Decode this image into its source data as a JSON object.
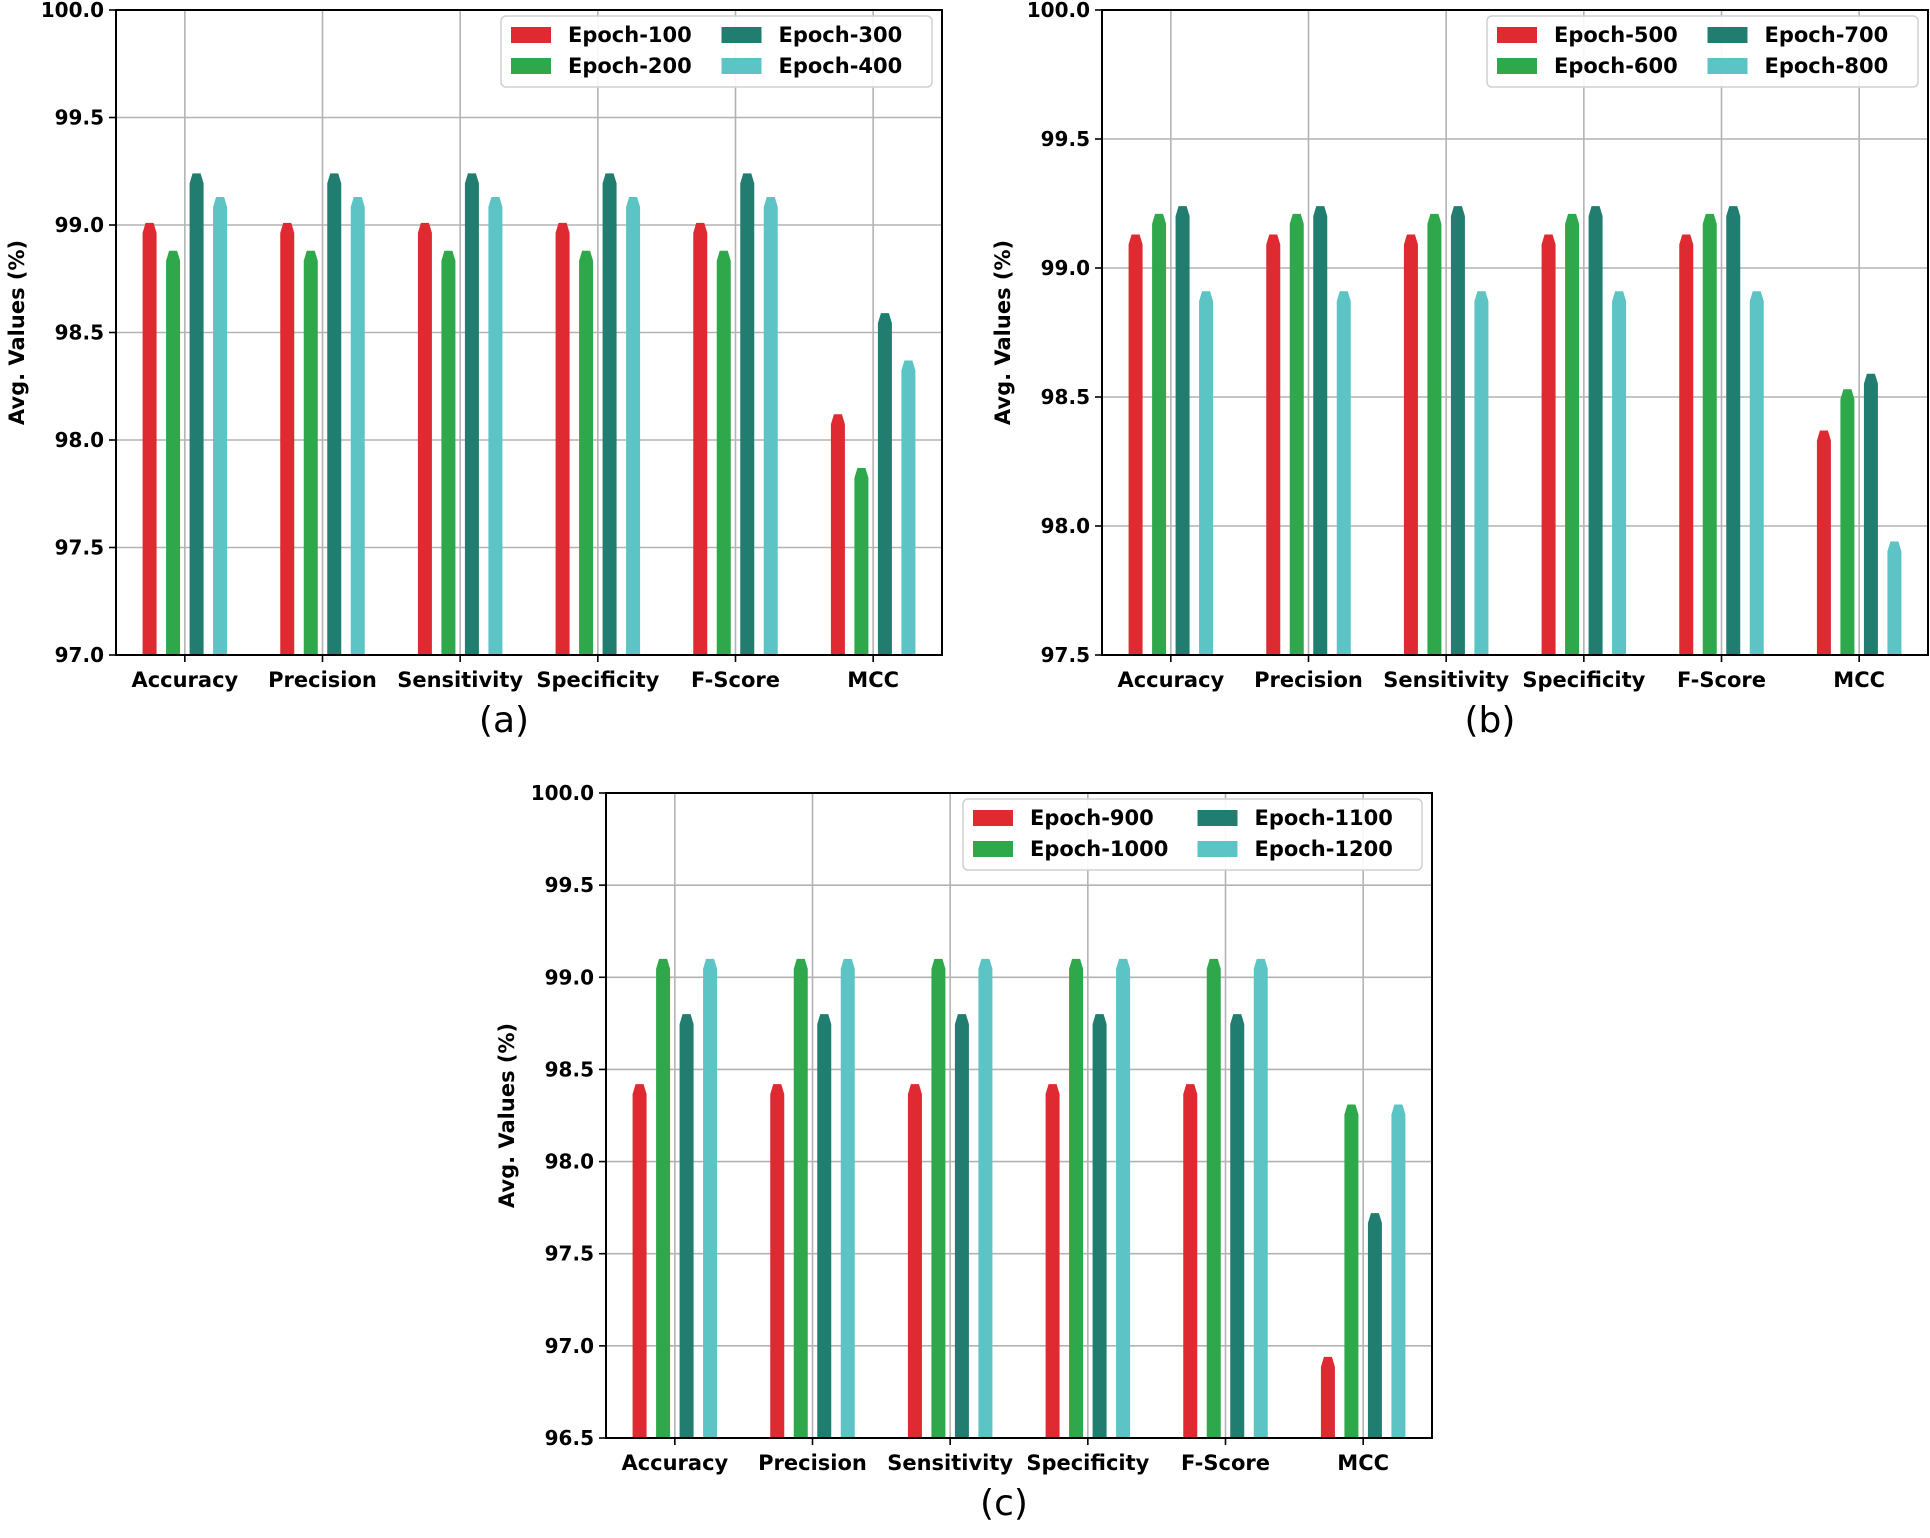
{
  "colors": {
    "series": [
      "#de2a30",
      "#2ea84a",
      "#207d70",
      "#5cc4c4"
    ],
    "grid": "#b3b3b3",
    "axis": "#000000"
  },
  "chart_data": [
    {
      "id": "a",
      "type": "bar",
      "caption": "(a)",
      "ylabel": "Avg. Values (%)",
      "ylim": [
        97.0,
        100.0
      ],
      "yticks": [
        "97.0",
        "97.5",
        "98.0",
        "98.5",
        "99.0",
        "99.5",
        "100.0"
      ],
      "categories": [
        "Accuracy",
        "Precision",
        "Sensitivity",
        "Specificity",
        "F-Score",
        "MCC"
      ],
      "legend_position": "top-right",
      "series": [
        {
          "name": "Epoch-100",
          "values": [
            99.01,
            99.01,
            99.01,
            99.01,
            99.01,
            98.12
          ]
        },
        {
          "name": "Epoch-200",
          "values": [
            98.88,
            98.88,
            98.88,
            98.88,
            98.88,
            97.87
          ]
        },
        {
          "name": "Epoch-300",
          "values": [
            99.24,
            99.24,
            99.24,
            99.24,
            99.24,
            98.59
          ]
        },
        {
          "name": "Epoch-400",
          "values": [
            99.13,
            99.13,
            99.13,
            99.13,
            99.13,
            98.37
          ]
        }
      ]
    },
    {
      "id": "b",
      "type": "bar",
      "caption": "(b)",
      "ylabel": "Avg. Values (%)",
      "ylim": [
        97.5,
        100.0
      ],
      "yticks": [
        "97.5",
        "98.0",
        "98.5",
        "99.0",
        "99.5",
        "100.0"
      ],
      "categories": [
        "Accuracy",
        "Precision",
        "Sensitivity",
        "Specificity",
        "F-Score",
        "MCC"
      ],
      "legend_position": "top-right",
      "series": [
        {
          "name": "Epoch-500",
          "values": [
            99.13,
            99.13,
            99.13,
            99.13,
            99.13,
            98.37
          ]
        },
        {
          "name": "Epoch-600",
          "values": [
            99.21,
            99.21,
            99.21,
            99.21,
            99.21,
            98.53
          ]
        },
        {
          "name": "Epoch-700",
          "values": [
            99.24,
            99.24,
            99.24,
            99.24,
            99.24,
            98.59
          ]
        },
        {
          "name": "Epoch-800",
          "values": [
            98.91,
            98.91,
            98.91,
            98.91,
            98.91,
            97.94
          ]
        }
      ]
    },
    {
      "id": "c",
      "type": "bar",
      "caption": "(c)",
      "ylabel": "Avg. Values (%)",
      "ylim": [
        96.5,
        100.0
      ],
      "yticks": [
        "96.5",
        "97.0",
        "97.5",
        "98.0",
        "98.5",
        "99.0",
        "99.5",
        "100.0"
      ],
      "categories": [
        "Accuracy",
        "Precision",
        "Sensitivity",
        "Specificity",
        "F-Score",
        "MCC"
      ],
      "legend_position": "top-right",
      "series": [
        {
          "name": "Epoch-900",
          "values": [
            98.42,
            98.42,
            98.42,
            98.42,
            98.42,
            96.94
          ]
        },
        {
          "name": "Epoch-1000",
          "values": [
            99.1,
            99.1,
            99.1,
            99.1,
            99.1,
            98.31
          ]
        },
        {
          "name": "Epoch-1100",
          "values": [
            98.8,
            98.8,
            98.8,
            98.8,
            98.8,
            97.72
          ]
        },
        {
          "name": "Epoch-1200",
          "values": [
            99.1,
            99.1,
            99.1,
            99.1,
            99.1,
            98.31
          ]
        }
      ]
    }
  ]
}
